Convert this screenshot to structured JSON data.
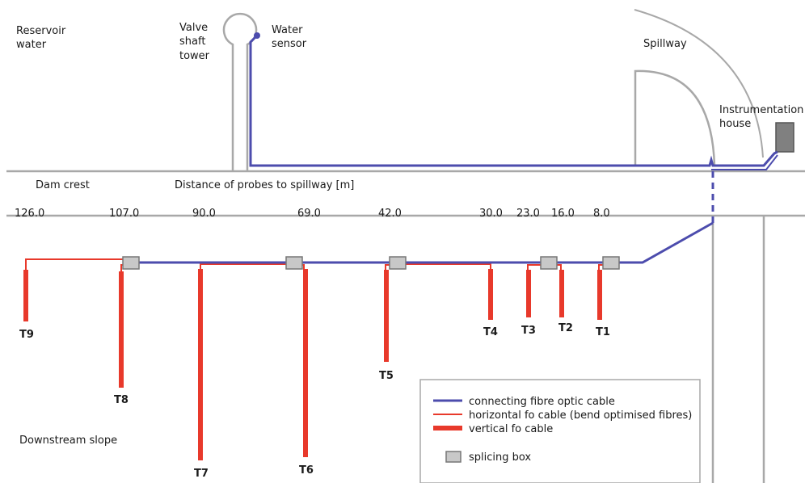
{
  "labels": {
    "reservoir": [
      "Reservoir",
      "water"
    ],
    "valve_tower": [
      "Valve",
      "shaft",
      "tower"
    ],
    "water_sensor": [
      "Water",
      "sensor"
    ],
    "spillway": "Spillway",
    "instrumentation_house": [
      "Instrumentation",
      "house"
    ],
    "dam_crest": "Dam crest",
    "distance_title": "Distance of probes to spillway [m]",
    "downstream_slope": "Downstream slope"
  },
  "distances": [
    "126.0",
    "107.0",
    "90.0",
    "69.0",
    "42.0",
    "30.0",
    "23.0",
    "16.0",
    "8.0"
  ],
  "probes": [
    "T9",
    "T8",
    "T7",
    "T6",
    "T5",
    "T4",
    "T3",
    "T2",
    "T1"
  ],
  "legend": {
    "items": [
      {
        "label": "connecting fibre optic cable",
        "color": "#4c4cad"
      },
      {
        "label": "horizontal fo cable (bend optimised fibres)",
        "color": "#e8392b"
      },
      {
        "label": "vertical fo cable",
        "color": "#e8392b"
      },
      {
        "label": "splicing box",
        "color": "#c8c8c8"
      }
    ]
  },
  "colors": {
    "connecting": "#4c4cad",
    "horizontal": "#e8392b",
    "vertical": "#e8392b",
    "structure": "#9a9a9a",
    "splice": "#c8c8c8"
  }
}
